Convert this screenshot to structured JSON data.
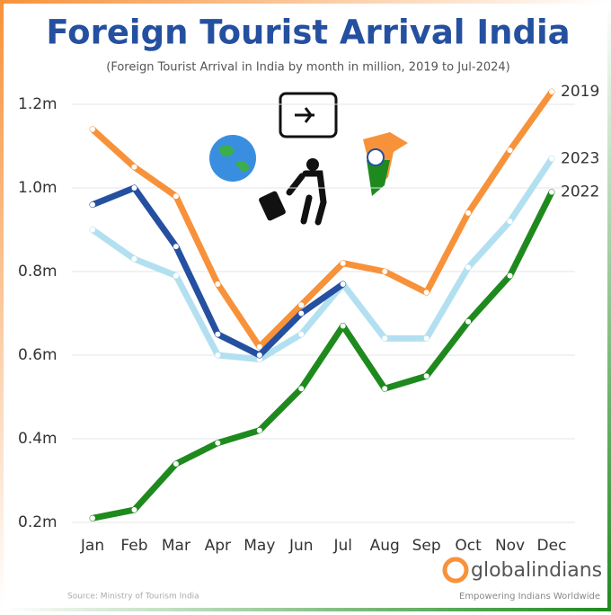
{
  "chart_data": {
    "type": "line",
    "title": "Foreign Tourist Arrival India",
    "subtitle": "(Foreign Tourist Arrival in India by month in million, 2019 to Jul-2024)",
    "categories": [
      "Jan",
      "Feb",
      "Mar",
      "Apr",
      "May",
      "Jun",
      "Jul",
      "Aug",
      "Sep",
      "Oct",
      "Nov",
      "Dec"
    ],
    "series": [
      {
        "name": "2023",
        "color": "#b3e0f0",
        "values": [
          0.9,
          0.83,
          0.79,
          0.6,
          0.59,
          0.65,
          0.77,
          0.64,
          0.64,
          0.81,
          0.92,
          1.07
        ]
      },
      {
        "name": "2019",
        "color": "#f7923a",
        "values": [
          1.14,
          1.05,
          0.98,
          0.77,
          0.62,
          0.72,
          0.82,
          0.8,
          0.75,
          0.94,
          1.09,
          1.23
        ]
      },
      {
        "color": "#2550a0",
        "values": [
          0.96,
          1.0,
          0.86,
          0.65,
          0.6,
          0.7,
          0.77,
          null,
          null,
          null,
          null,
          null
        ]
      },
      {
        "name": "2022",
        "color": "#1e8a1e",
        "values": [
          0.21,
          0.23,
          0.34,
          0.39,
          0.42,
          0.52,
          0.67,
          0.52,
          0.55,
          0.68,
          0.79,
          0.99
        ]
      }
    ],
    "ylim": [
      0.2,
      1.25
    ],
    "yticks": [
      {
        "value": 0.2,
        "label": "0.2m"
      },
      {
        "value": 0.4,
        "label": "0.4m"
      },
      {
        "value": 0.6,
        "label": "0.6m"
      },
      {
        "value": 0.8,
        "label": "0.8m"
      },
      {
        "value": 1.0,
        "label": "1.0m"
      },
      {
        "value": 1.2,
        "label": "1.2m"
      }
    ],
    "grid": true,
    "source": "Source: Ministry of Tourism India",
    "brand": "globalindians",
    "tagline": "Empowering Indians Worldwide"
  }
}
